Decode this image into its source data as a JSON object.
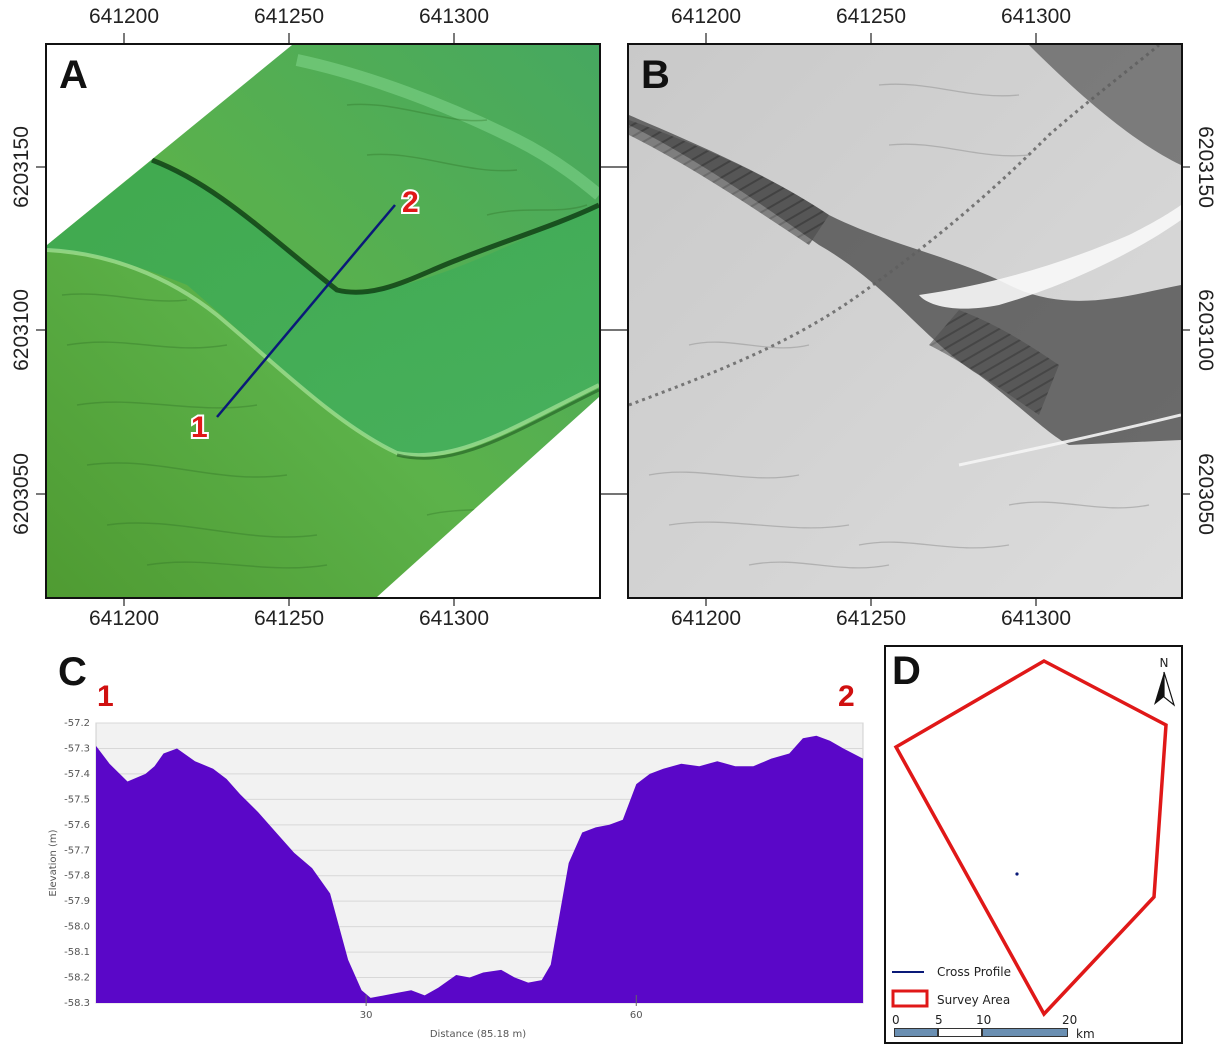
{
  "panels": {
    "a": {
      "letter": "A"
    },
    "b": {
      "letter": "B"
    },
    "c": {
      "letter": "C"
    },
    "d": {
      "letter": "D"
    }
  },
  "map_axes": {
    "x_ticks": [
      "641200",
      "641250",
      "641300"
    ],
    "y_ticks": [
      "6203150",
      "6203100",
      "6203050"
    ]
  },
  "profile_points": {
    "start": "1",
    "end": "2"
  },
  "chart_data": {
    "type": "area",
    "title": "",
    "xlabel": "Distance (85.18 m)",
    "ylabel": "Elevation (m)",
    "xlim": [
      0,
      85.18
    ],
    "ylim": [
      -58.3,
      -57.2
    ],
    "x_ticks": [
      "30",
      "60"
    ],
    "y_ticks": [
      "-57.2",
      "-57.3",
      "-57.4",
      "-57.5",
      "-57.6",
      "-57.7",
      "-57.8",
      "-57.9",
      "-58.0",
      "-58.1",
      "-58.2",
      "-58.3"
    ],
    "grid": true,
    "fill_color": "#5a07c8",
    "x": [
      0,
      1.5,
      3.5,
      5.5,
      6.5,
      7.5,
      9,
      11,
      13,
      14.5,
      16,
      18,
      20,
      22,
      24,
      26,
      28,
      29.5,
      30.5,
      32,
      33.5,
      35,
      36.5,
      38,
      40,
      41.5,
      43,
      45,
      46.5,
      48,
      49.5,
      50.5,
      51.5,
      52.5,
      54,
      55.5,
      57,
      58.5,
      60,
      61.5,
      63,
      65,
      67,
      69,
      71,
      73,
      75,
      77,
      78.5,
      80,
      81.5,
      83,
      85.18
    ],
    "y": [
      -57.29,
      -57.36,
      -57.43,
      -57.4,
      -57.37,
      -57.32,
      -57.3,
      -57.35,
      -57.38,
      -57.42,
      -57.48,
      -57.55,
      -57.63,
      -57.71,
      -57.77,
      -57.87,
      -58.13,
      -58.25,
      -58.28,
      -58.27,
      -58.26,
      -58.25,
      -58.27,
      -58.24,
      -58.19,
      -58.2,
      -58.18,
      -58.17,
      -58.2,
      -58.22,
      -58.21,
      -58.15,
      -57.95,
      -57.75,
      -57.63,
      -57.61,
      -57.6,
      -57.58,
      -57.44,
      -57.4,
      -57.38,
      -57.36,
      -57.37,
      -57.35,
      -57.37,
      -57.37,
      -57.34,
      -57.32,
      -57.26,
      -57.25,
      -57.27,
      -57.3,
      -57.34
    ]
  },
  "legend": {
    "cross_profile_label": "Cross Profile",
    "survey_area_label": "Survey Area",
    "cross_profile_color": "#0a1a78",
    "survey_area_color": "#e01818"
  },
  "scale_bar": {
    "labels": [
      "0",
      "5",
      "10",
      "20"
    ],
    "unit": "km"
  },
  "north_arrow": {
    "label": "N"
  }
}
